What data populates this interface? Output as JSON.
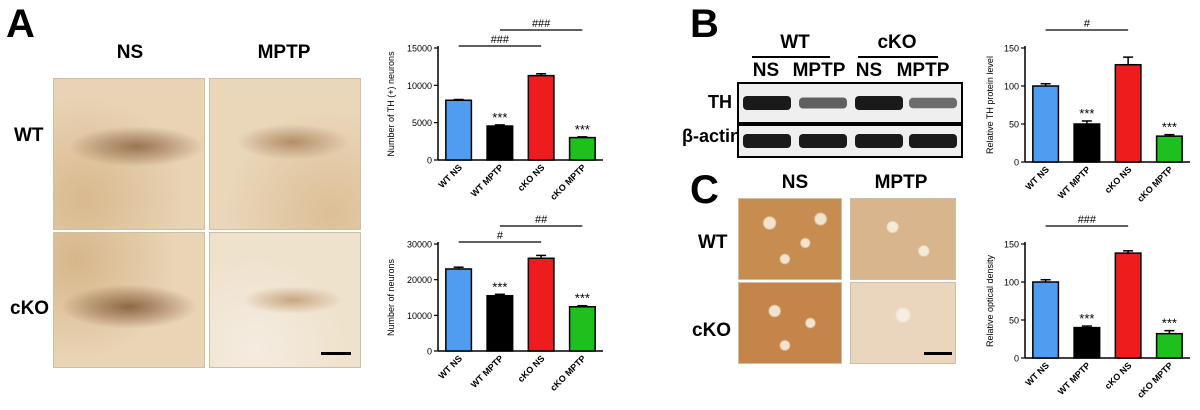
{
  "panels": {
    "A": {
      "letter": "A",
      "columns": [
        "NS",
        "MPTP"
      ],
      "rows": [
        "WT",
        "cKO"
      ]
    },
    "B": {
      "letter": "B",
      "groups": [
        "WT",
        "cKO"
      ],
      "lanes": [
        "NS",
        "MPTP",
        "NS",
        "MPTP"
      ],
      "bands": [
        "TH",
        "β-actin"
      ],
      "band_intensities": {
        "TH": [
          1.0,
          0.5,
          1.0,
          0.4
        ],
        "beta_actin": [
          1.0,
          1.0,
          1.0,
          1.0
        ]
      }
    },
    "C": {
      "letter": "C",
      "columns": [
        "NS",
        "MPTP"
      ],
      "rows": [
        "WT",
        "cKO"
      ]
    }
  },
  "colors": {
    "WT NS": "#4f9cf0",
    "WT MPTP": "#000000",
    "cKO NS": "#ee1c1c",
    "cKO MPTP": "#1ec01e"
  },
  "chart_data": [
    {
      "id": "A-top",
      "type": "bar",
      "categories": [
        "WT NS",
        "WT MPTP",
        "cKO NS",
        "cKO MPTP"
      ],
      "values": [
        8000,
        4550,
        11300,
        3000
      ],
      "errors": [
        100,
        150,
        250,
        100
      ],
      "stars": [
        "",
        "***",
        "",
        "***"
      ],
      "ylabel": "Number of TH (+) neurons",
      "ylim": [
        0,
        15000
      ],
      "yticks": [
        "0",
        "5000",
        "10000",
        "15000"
      ],
      "ytick_values": [
        0,
        5000,
        10000,
        15000
      ],
      "brackets": [
        {
          "from": 0,
          "to": 2,
          "label": "###",
          "level": 0
        },
        {
          "from": 1,
          "to": 3,
          "label": "###",
          "level": 1
        }
      ]
    },
    {
      "id": "A-bottom",
      "type": "bar",
      "categories": [
        "WT NS",
        "WT MPTP",
        "cKO NS",
        "cKO MPTP"
      ],
      "values": [
        23000,
        15500,
        26000,
        12400
      ],
      "errors": [
        500,
        400,
        800,
        300
      ],
      "stars": [
        "",
        "***",
        "",
        "***"
      ],
      "ylabel": "Number of neurons",
      "ylim": [
        0,
        30000
      ],
      "yticks": [
        "0",
        "10000",
        "20000",
        "30000"
      ],
      "ytick_values": [
        0,
        10000,
        20000,
        30000
      ],
      "brackets": [
        {
          "from": 0,
          "to": 2,
          "label": "#",
          "level": 0
        },
        {
          "from": 1,
          "to": 3,
          "label": "##",
          "level": 1
        }
      ]
    },
    {
      "id": "B",
      "type": "bar",
      "categories": [
        "WT NS",
        "WT MPTP",
        "cKO NS",
        "cKO MPTP"
      ],
      "values": [
        100,
        50,
        128,
        34
      ],
      "errors": [
        3,
        4,
        10,
        2
      ],
      "stars": [
        "",
        "***",
        "",
        "***"
      ],
      "ylabel": "Relative TH protein level",
      "ylim": [
        0,
        150
      ],
      "yticks": [
        "0",
        "50",
        "100",
        "150"
      ],
      "ytick_values": [
        0,
        50,
        100,
        150
      ],
      "brackets": [
        {
          "from": 0,
          "to": 2,
          "label": "#",
          "level": 1
        }
      ]
    },
    {
      "id": "C",
      "type": "bar",
      "categories": [
        "WT NS",
        "WT MPTP",
        "cKO NS",
        "cKO MPTP"
      ],
      "values": [
        100,
        40,
        138,
        32
      ],
      "errors": [
        3,
        2,
        3,
        4
      ],
      "stars": [
        "",
        "***",
        "",
        "***"
      ],
      "ylabel": "Relative optical density",
      "ylim": [
        0,
        150
      ],
      "yticks": [
        "0",
        "50",
        "100",
        "150"
      ],
      "ytick_values": [
        0,
        50,
        100,
        150
      ],
      "brackets": [
        {
          "from": 0,
          "to": 2,
          "label": "###",
          "level": 1
        }
      ]
    }
  ]
}
